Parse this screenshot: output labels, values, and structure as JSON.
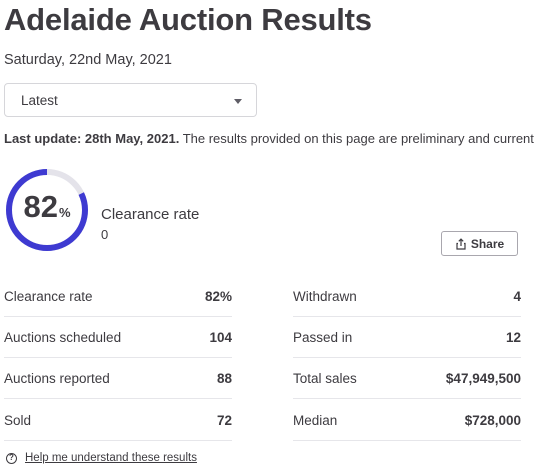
{
  "header": {
    "title": "Adelaide Auction Results",
    "date": "Saturday, 22nd May, 2021"
  },
  "selector": {
    "value": "Latest"
  },
  "update_notice": {
    "bold": "Last update: 28th May, 2021.",
    "text": " The results provided on this page are preliminary and current"
  },
  "clearance": {
    "percent": 82,
    "percent_label": "82",
    "unit": "%",
    "label": "Clearance rate",
    "sub": "0",
    "track_color": "#e4e3ea",
    "fill_color": "#3e3ad1"
  },
  "share": {
    "label": "Share",
    "icon": "share-icon"
  },
  "stats_left": [
    {
      "label": "Clearance rate",
      "value": "82%"
    },
    {
      "label": "Auctions scheduled",
      "value": "104"
    },
    {
      "label": "Auctions reported",
      "value": "88"
    },
    {
      "label": "Sold",
      "value": "72"
    }
  ],
  "stats_right": [
    {
      "label": "Withdrawn",
      "value": "4"
    },
    {
      "label": "Passed in",
      "value": "12"
    },
    {
      "label": "Total sales",
      "value": "$47,949,500"
    },
    {
      "label": "Median",
      "value": "$728,000"
    }
  ],
  "help": {
    "icon": "question-circle-icon",
    "glyph": "?",
    "label": "Help me understand these results"
  }
}
